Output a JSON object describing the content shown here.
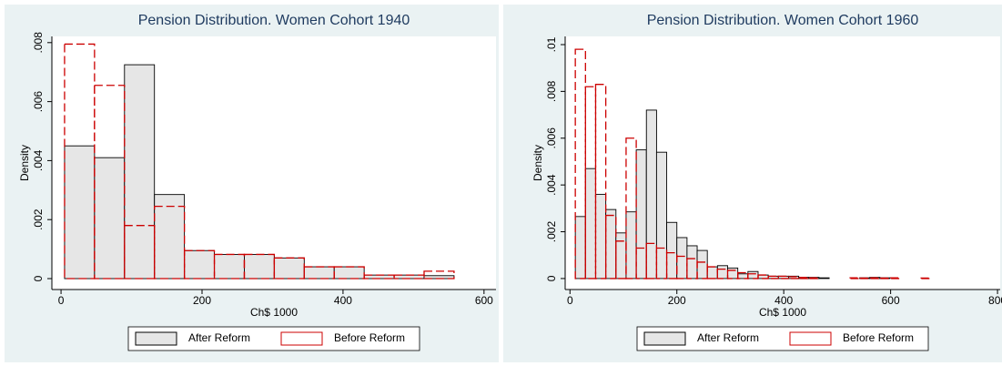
{
  "chart_data": [
    {
      "type": "histogram",
      "title": "Pension Distribution. Women Cohort 1940",
      "x_label": "Ch$ 1000",
      "y_label": "Density",
      "bins": [
        5,
        47.5,
        90,
        132.5,
        175,
        217.5,
        260,
        302.5,
        345,
        387.5,
        430,
        472.5,
        515,
        557.5
      ],
      "series": [
        {
          "name": "After Reform",
          "color": "#000000",
          "fill": "#e6e6e6",
          "dashed": false,
          "values": [
            0.0045,
            0.0041,
            0.00725,
            0.00285,
            0.00095,
            0.00082,
            0.00082,
            0.0007,
            0.0004,
            0.0004,
            0.00012,
            0.00012,
            0.0001
          ]
        },
        {
          "name": "Before Reform",
          "color": "#cc0000",
          "fill": "none",
          "dashed": true,
          "values": [
            0.00795,
            0.00655,
            0.0018,
            0.00245,
            0.00095,
            0.00082,
            0.00082,
            0.0007,
            0.0004,
            0.0004,
            0.00012,
            0.00012,
            0.00025
          ]
        }
      ],
      "xlim": [
        -13,
        617
      ],
      "xticks": [
        0,
        200,
        400,
        600
      ],
      "ylim": [
        -0.00037,
        0.00821
      ],
      "yticks": [
        0,
        {
          "value": 0.002,
          "label": ".002"
        },
        {
          "value": 0.004,
          "label": ".004"
        },
        {
          "value": 0.006,
          "label": ".006"
        },
        {
          "value": 0.008,
          "label": ".008"
        }
      ],
      "grid": false,
      "legend": "bottom"
    },
    {
      "type": "histogram",
      "title": "Pension Distribution. Women Cohort 1960",
      "x_label": "Ch$ 1000",
      "y_label": "Density",
      "bins": [
        10,
        29,
        48,
        67,
        86,
        105,
        124,
        143,
        162,
        181,
        200,
        219,
        238,
        257,
        276,
        295,
        314,
        333,
        352,
        371,
        390,
        409,
        428,
        447,
        466,
        485,
        504,
        523,
        542,
        561,
        580,
        599,
        618,
        637,
        656,
        675
      ],
      "series": [
        {
          "name": "After Reform",
          "color": "#000000",
          "fill": "#e6e6e6",
          "dashed": false,
          "values": [
            0.00265,
            0.0047,
            0.0036,
            0.00295,
            0.00195,
            0.00285,
            0.0055,
            0.0072,
            0.0054,
            0.0024,
            0.00175,
            0.0014,
            0.0012,
            0.0005,
            0.00055,
            0.00045,
            0.0002,
            0.0003,
            0.00015,
            0.0001,
            0.0001,
            0.0001,
            5e-05,
            5e-05,
            3e-05,
            0,
            0,
            0,
            3e-05,
            5e-05,
            3e-05,
            0,
            0,
            0,
            0
          ]
        },
        {
          "name": "Before Reform",
          "color": "#cc0000",
          "fill": "none",
          "dashed": true,
          "values": [
            0.0098,
            0.0082,
            0.0083,
            0.0027,
            0.0016,
            0.006,
            0.0013,
            0.0015,
            0.0013,
            0.0011,
            0.00095,
            0.00085,
            0.0007,
            0.0005,
            0.0004,
            0.00035,
            0.00025,
            0.0002,
            0.00015,
            0.0001,
            0.0001,
            8e-05,
            5e-05,
            3e-05,
            0,
            0,
            0,
            3e-05,
            2e-05,
            3e-05,
            2e-05,
            3e-05,
            0,
            0,
            2e-05
          ]
        }
      ],
      "xlim": [
        -9,
        805
      ],
      "xticks": [
        0,
        200,
        400,
        600,
        800
      ],
      "ylim": [
        -0.00047,
        0.01035
      ],
      "yticks": [
        0,
        {
          "value": 0.002,
          "label": ".002"
        },
        {
          "value": 0.004,
          "label": ".004"
        },
        {
          "value": 0.006,
          "label": ".006"
        },
        {
          "value": 0.008,
          "label": ".008"
        },
        {
          "value": 0.01,
          "label": ".01"
        }
      ],
      "grid": false,
      "legend": "bottom"
    }
  ]
}
